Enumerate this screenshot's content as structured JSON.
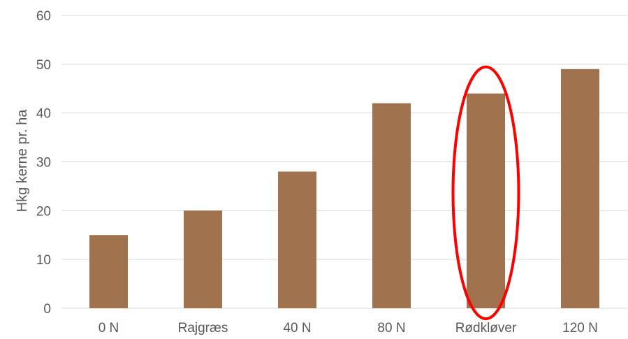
{
  "chart_data": {
    "type": "bar",
    "title": "",
    "xlabel": "",
    "ylabel": "Hkg kerne pr. ha",
    "categories": [
      "0 N",
      "Rajgræs",
      "40 N",
      "80 N",
      "Rødkløver",
      "120 N"
    ],
    "values": [
      15,
      20,
      28,
      42,
      44,
      49
    ],
    "ylim": [
      0,
      60
    ],
    "yticks": [
      "0",
      "10",
      "20",
      "30",
      "40",
      "50",
      "60"
    ],
    "grid": true,
    "legend": "none",
    "bar_color": "#A0724E",
    "gridline_color": "#D9D9D9",
    "highlight": {
      "category": "Rødkløver",
      "shape": "ellipse",
      "color": "#FF0000"
    }
  }
}
